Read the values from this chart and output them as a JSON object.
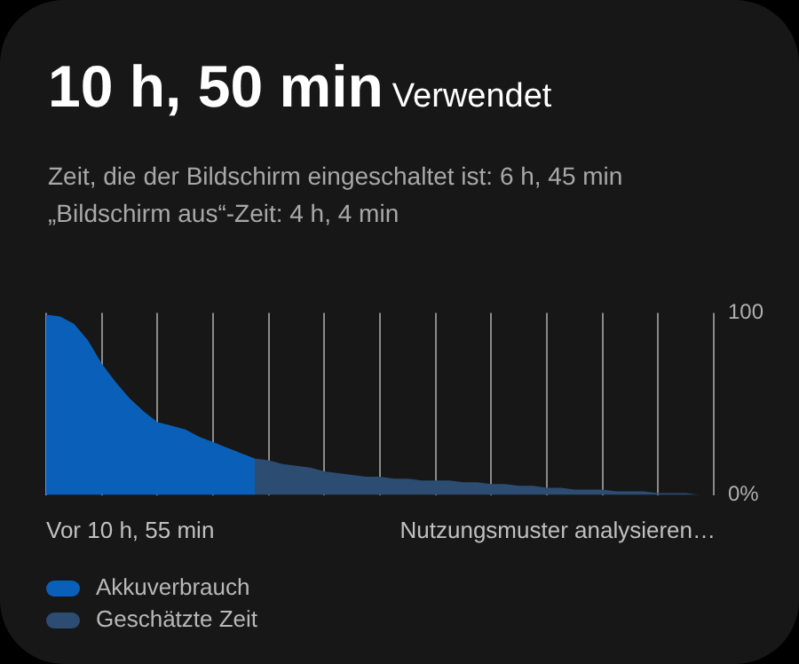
{
  "chart_data": {
    "type": "area",
    "title": "10 h, 50 min",
    "subtitle": "Zeit, die der Bildschirm eingeschaltet ist: 6 h, 45 min",
    "annotations": [
      "Verwendet",
      "„Bildschirm aus“-Zeit: 4 h, 4 min",
      "Vor 10 h, 55 min",
      "Nutzungsmuster analysieren…"
    ],
    "categories": [
      null,
      null,
      null,
      null,
      null,
      null,
      null,
      null,
      null,
      null,
      null,
      null,
      null,
      null,
      null,
      null,
      null,
      null,
      null,
      null,
      null,
      null,
      null,
      null,
      null,
      null,
      null,
      null,
      null,
      null,
      null,
      null,
      null,
      null,
      null,
      null,
      null,
      null,
      null,
      null,
      null,
      null,
      null,
      null,
      null,
      null,
      null,
      null,
      null
    ],
    "ylim": [
      0,
      100
    ],
    "yticks": [
      {
        "value": 0,
        "label": "0%"
      },
      100
    ],
    "grid": "x",
    "legend": "bottom left",
    "marker": "none",
    "series": [
      {
        "name": "Akkuverbrauch",
        "color": "#0a60b8",
        "values": [
          99,
          98,
          94,
          85,
          72,
          62,
          53,
          46,
          40,
          38,
          36,
          32,
          29,
          26,
          23,
          20,
          null,
          null,
          null,
          null,
          null,
          null,
          null,
          null,
          null,
          null,
          null,
          null,
          null,
          null,
          null,
          null,
          null,
          null,
          null,
          null,
          null,
          null,
          null,
          null,
          null,
          null,
          null,
          null,
          null,
          null,
          null,
          null,
          null
        ]
      },
      {
        "name": "Geschätzte Zeit",
        "color": "#2c4c72",
        "values": [
          null,
          null,
          null,
          null,
          null,
          null,
          null,
          null,
          null,
          null,
          null,
          null,
          null,
          null,
          null,
          20,
          19,
          17,
          16,
          15,
          13,
          12,
          11,
          10,
          10,
          9,
          9,
          8,
          8,
          8,
          7,
          7,
          6,
          6,
          5,
          5,
          4,
          4,
          3,
          3,
          3,
          2,
          2,
          2,
          1,
          1,
          1,
          0,
          null
        ]
      }
    ]
  }
}
